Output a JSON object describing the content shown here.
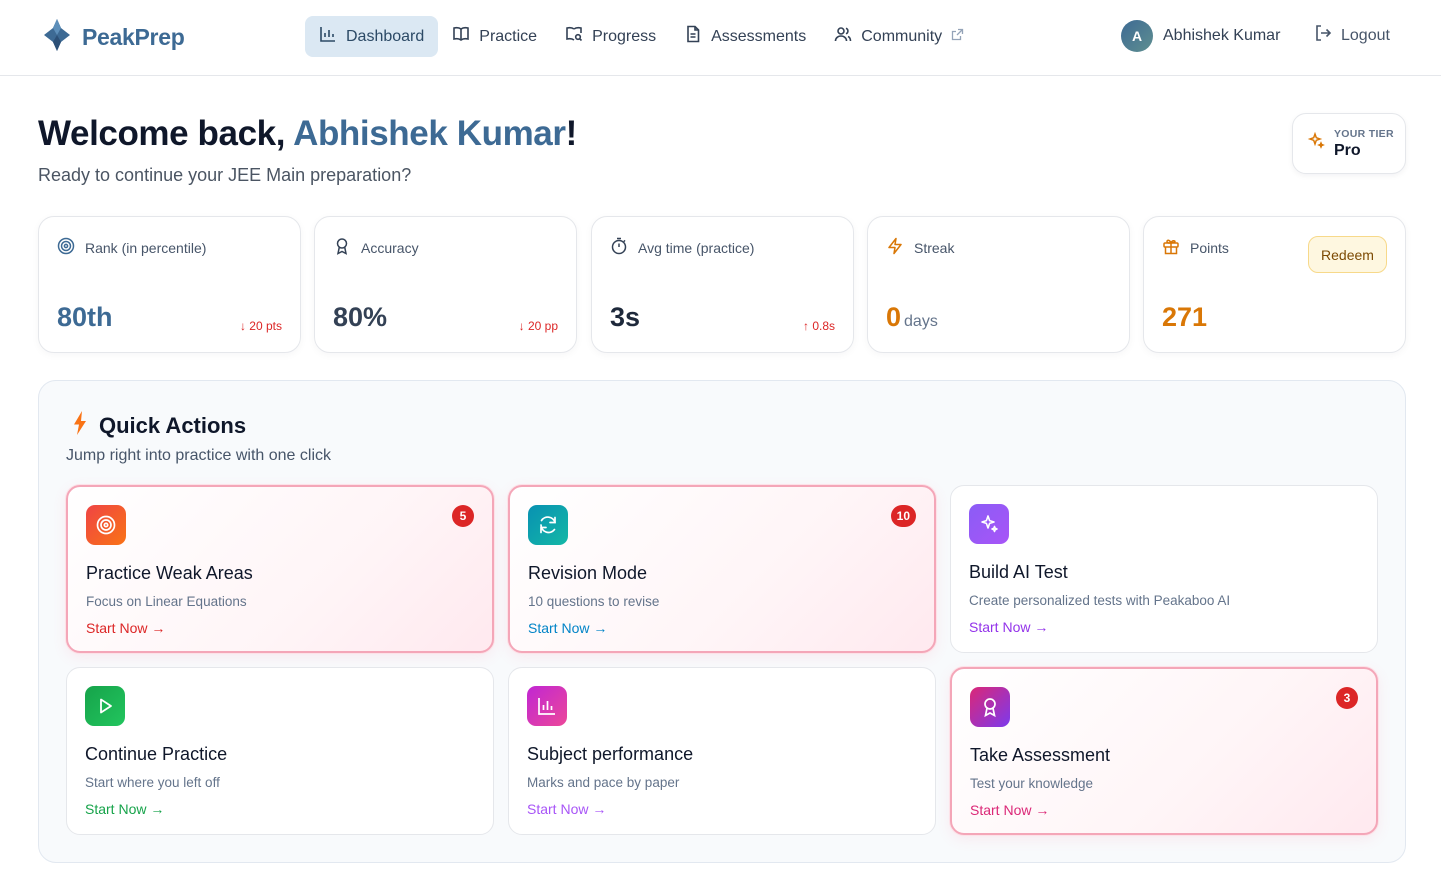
{
  "header": {
    "brand": "PeakPrep",
    "nav": [
      {
        "label": "Dashboard",
        "icon": "bar-chart-icon",
        "active": true
      },
      {
        "label": "Practice",
        "icon": "book-open-icon"
      },
      {
        "label": "Progress",
        "icon": "book-search-icon"
      },
      {
        "label": "Assessments",
        "icon": "document-icon"
      },
      {
        "label": "Community",
        "icon": "users-icon",
        "external": true
      }
    ],
    "user": {
      "initial": "A",
      "name": "Abhishek Kumar"
    },
    "logout": "Logout"
  },
  "welcome": {
    "prefix": "Welcome back, ",
    "name": "Abhishek Kumar",
    "suffix": "!",
    "subtitle": "Ready to continue your JEE Main preparation?"
  },
  "tier": {
    "label": "YOUR TIER",
    "value": "Pro"
  },
  "stats": [
    {
      "label": "Rank (in percentile)",
      "icon": "target-icon",
      "value": "80th",
      "delta": "↓ 20 pts",
      "delta_color": "#dc2626"
    },
    {
      "label": "Accuracy",
      "icon": "award-icon",
      "value": "80%",
      "delta": "↓ 20 pp",
      "delta_color": "#dc2626"
    },
    {
      "label": "Avg time (practice)",
      "icon": "timer-icon",
      "value": "3s",
      "delta": "↑ 0.8s",
      "delta_color": "#dc2626"
    },
    {
      "label": "Streak",
      "icon": "zap-icon",
      "value": "0",
      "unit": "days"
    },
    {
      "label": "Points",
      "icon": "gift-icon",
      "value": "271",
      "action": "Redeem"
    }
  ],
  "quick_actions": {
    "title": "Quick Actions",
    "subtitle": "Jump right into practice with one click",
    "cards": [
      {
        "title": "Practice Weak Areas",
        "desc": "Focus on Linear Equations",
        "link": "Start Now →",
        "badge": "5",
        "icon": "target-icon",
        "link_color": "#dc2626"
      },
      {
        "title": "Revision Mode",
        "desc": "10 questions to revise",
        "link": "Start Now →",
        "badge": "10",
        "icon": "refresh-icon",
        "link_color": "#0284c7"
      },
      {
        "title": "Build AI Test",
        "desc": "Create personalized tests with Peakaboo AI",
        "link": "Start Now →",
        "icon": "sparkles-icon",
        "link_color": "#9333ea"
      },
      {
        "title": "Continue Practice",
        "desc": "Start where you left off",
        "link": "Start Now →",
        "icon": "play-icon",
        "link_color": "#16a34a"
      },
      {
        "title": "Subject performance",
        "desc": "Marks and pace by paper",
        "link": "Start Now →",
        "icon": "bar-chart-icon",
        "link_color": "#a855f7"
      },
      {
        "title": "Take Assessment",
        "desc": "Test your knowledge",
        "link": "Start Now →",
        "badge": "3",
        "icon": "award-icon",
        "link_color": "#db2777"
      }
    ]
  },
  "colors": {
    "brand": "#3d6a94",
    "accent_orange": "#d97706",
    "alert_red": "#dc2626"
  }
}
